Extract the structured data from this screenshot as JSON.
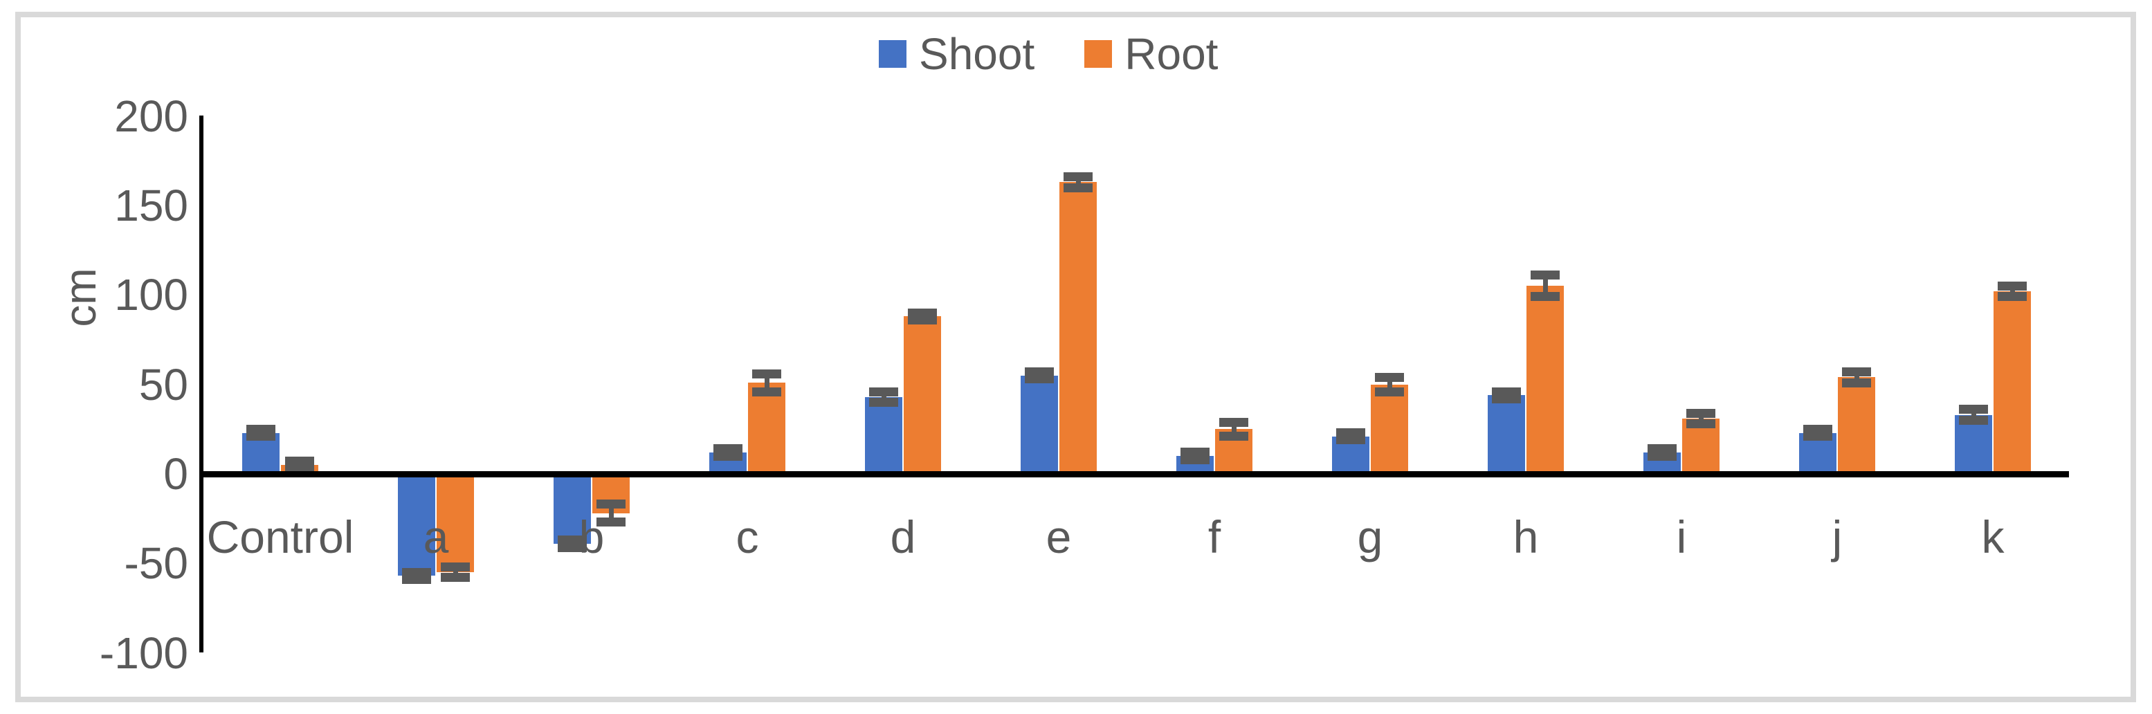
{
  "legend": {
    "items": [
      {
        "label": "Shoot",
        "color": "#4472C4"
      },
      {
        "label": "Root",
        "color": "#ED7D31"
      }
    ]
  },
  "chart_data": {
    "type": "bar",
    "title": "",
    "ylabel": "cm",
    "categories": [
      "Control",
      "a",
      "b",
      "c",
      "d",
      "e",
      "f",
      "g",
      "h",
      "i",
      "j",
      "k"
    ],
    "series": [
      {
        "name": "Shoot",
        "color": "#4472C4",
        "values": [
          23,
          -57,
          -39,
          12,
          43,
          55,
          10,
          21,
          44,
          12,
          23,
          33
        ],
        "errors": [
          2,
          2,
          2,
          2,
          3,
          2,
          2,
          2,
          2,
          2,
          2,
          3
        ]
      },
      {
        "name": "Root",
        "color": "#ED7D31",
        "values": [
          5,
          -55,
          -22,
          51,
          88,
          163,
          25,
          50,
          105,
          31,
          54,
          102
        ],
        "errors": [
          2,
          3,
          5,
          5,
          2,
          3,
          4,
          4,
          6,
          3,
          3,
          3
        ]
      }
    ],
    "yticks": [
      200,
      150,
      100,
      50,
      0,
      -50,
      -100
    ],
    "ylim": [
      -100,
      200
    ],
    "grid": false,
    "legend_position": "top-center",
    "error_bar_color": "#595959",
    "axis_color": "#000000",
    "text_color": "#595959"
  }
}
